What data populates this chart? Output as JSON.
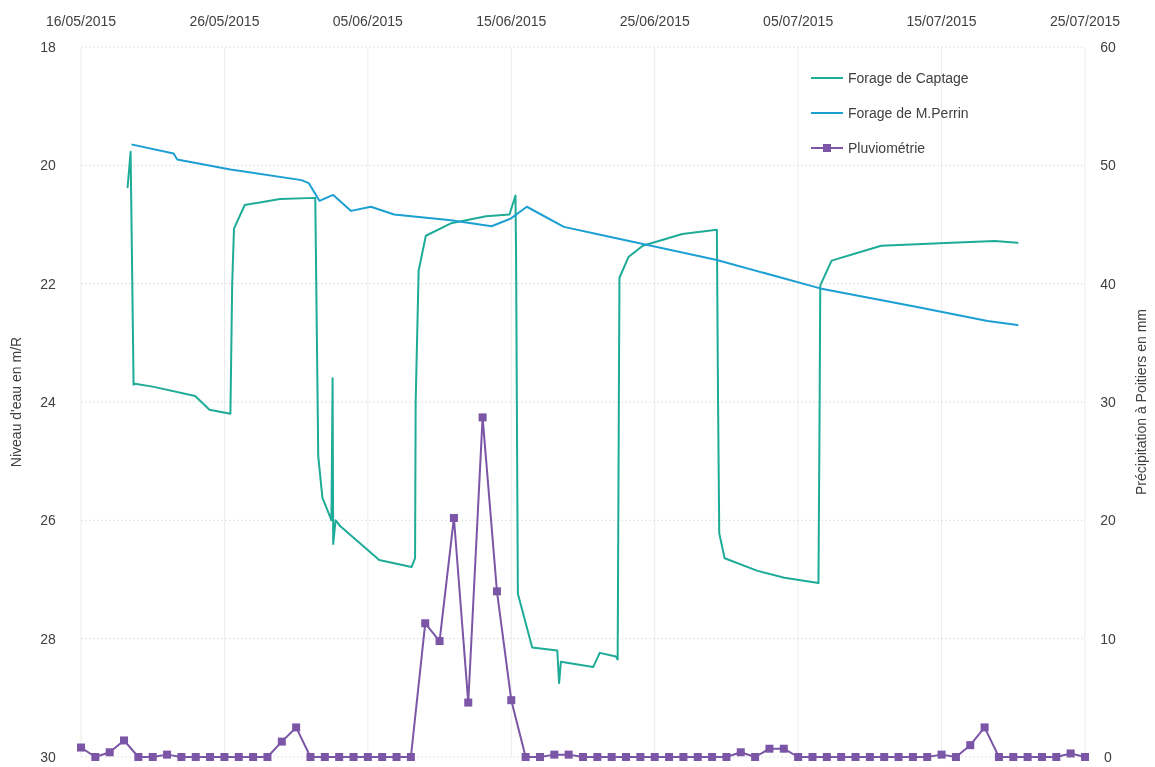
{
  "chart_data": {
    "type": "line",
    "xlabel": null,
    "ylabel": "Niveau d'eau en m/R",
    "y2label": "Précipitation à Poitiers en mm",
    "xlim": [
      "2015-05-16",
      "2015-07-25"
    ],
    "xticks": [
      {
        "value": "2015-05-16",
        "label": "16/05/2015"
      },
      {
        "value": "2015-05-26",
        "label": "26/05/2015"
      },
      {
        "value": "2015-06-05",
        "label": "05/06/2015"
      },
      {
        "value": "2015-06-15",
        "label": "15/06/2015"
      },
      {
        "value": "2015-06-25",
        "label": "25/06/2015"
      },
      {
        "value": "2015-07-05",
        "label": "05/07/2015"
      },
      {
        "value": "2015-07-15",
        "label": "15/07/2015"
      },
      {
        "value": "2015-07-25",
        "label": "25/07/2015"
      }
    ],
    "ylim": [
      30,
      18
    ],
    "yticks": [
      18,
      20,
      22,
      24,
      26,
      28,
      30
    ],
    "y2lim": [
      0,
      60
    ],
    "y2ticks": [
      0,
      10,
      20,
      30,
      40,
      50,
      60
    ],
    "grid": true,
    "legend": "top right",
    "series": [
      {
        "name": "Forage de Captage",
        "color": "#1eab98",
        "marker": "none",
        "x": [
          "2015-05-19T06:00",
          "2015-05-19T11:00",
          "2015-05-19T16:00",
          "2015-05-19T18:00",
          "2015-05-21T00:00",
          "2015-05-23T23:00",
          "2015-05-24T23:00",
          "2015-05-26T10:00",
          "2015-05-26T13:00",
          "2015-05-26T16:00",
          "2015-05-27T10:00",
          "2015-05-29T21:00",
          "2015-06-01T08:00",
          "2015-06-01T13:00",
          "2015-06-01T20:00",
          "2015-06-02T08:00",
          "2015-06-02T11:00",
          "2015-06-02T13:00",
          "2015-06-02T14:00",
          "2015-06-02T18:00",
          "2015-06-03T02:00",
          "2015-06-05T19:00",
          "2015-06-08T01:00",
          "2015-06-08T07:00",
          "2015-06-08T08:00",
          "2015-06-08T13:00",
          "2015-06-09T01:00",
          "2015-06-10T19:00",
          "2015-06-13T06:00",
          "2015-06-14T21:00",
          "2015-06-15T07:00",
          "2015-06-15T08:00",
          "2015-06-15T11:00",
          "2015-06-16T11:00",
          "2015-06-18T05:00",
          "2015-06-18T08:00",
          "2015-06-18T11:00",
          "2015-06-20T17:00",
          "2015-06-21T04:00",
          "2015-06-22T07:00",
          "2015-06-22T10:00",
          "2015-06-22T12:00",
          "2015-06-22T13:00",
          "2015-06-23T04:00",
          "2015-06-24T04:00",
          "2015-06-26T22:00",
          "2015-06-29T08:00",
          "2015-06-29T10:00",
          "2015-06-29T12:00",
          "2015-06-29T21:00",
          "2015-07-02T03:00",
          "2015-07-04T01:00",
          "2015-07-06T10:00",
          "2015-07-06T12:00",
          "2015-07-06T13:00",
          "2015-07-07T08:00",
          "2015-07-10T19:00",
          "2015-07-15T17:00",
          "2015-07-18T17:00",
          "2015-07-20T07:00"
        ],
        "values": [
          20.37,
          19.77,
          23.71,
          23.69,
          23.74,
          23.9,
          24.13,
          24.2,
          22.0,
          21.07,
          20.67,
          20.57,
          20.55,
          24.92,
          25.62,
          25.92,
          26.0,
          23.6,
          26.4,
          26.0,
          26.1,
          26.67,
          26.79,
          26.64,
          24.0,
          21.78,
          21.19,
          20.98,
          20.86,
          20.83,
          20.51,
          21.5,
          27.24,
          28.15,
          28.2,
          28.75,
          28.39,
          28.48,
          28.24,
          28.3,
          28.35,
          24.0,
          21.9,
          21.55,
          21.36,
          21.16,
          21.09,
          24.0,
          26.22,
          26.64,
          26.85,
          26.97,
          27.06,
          24.0,
          22.03,
          21.61,
          21.36,
          21.31,
          21.28,
          21.31
        ]
      },
      {
        "name": "Forage de M.Perrin",
        "color": "#1c9fd2",
        "marker": "none",
        "x": [
          "2015-05-19T14:00",
          "2015-05-22T11:00",
          "2015-05-22T17:00",
          "2015-05-26T10:00",
          "2015-05-31T09:00",
          "2015-05-31T21:00",
          "2015-06-01T15:00",
          "2015-06-02T14:00",
          "2015-06-03T20:00",
          "2015-06-05T05:00",
          "2015-06-06T20:00",
          "2015-06-10T19:00",
          "2015-06-13T15:00",
          "2015-06-14T23:00",
          "2015-06-16T02:00",
          "2015-06-18T16:00",
          "2015-06-20T23:00",
          "2015-06-29T08:00",
          "2015-07-06T13:00",
          "2015-07-13T05:00",
          "2015-07-18T05:00",
          "2015-07-20T07:00"
        ],
        "values": [
          19.65,
          19.8,
          19.9,
          20.07,
          20.25,
          20.3,
          20.6,
          20.5,
          20.77,
          20.7,
          20.83,
          20.93,
          21.03,
          20.9,
          20.7,
          21.04,
          21.16,
          21.6,
          22.08,
          22.39,
          22.63,
          22.7
        ]
      },
      {
        "name": "Pluviométrie",
        "color": "#7b55a6",
        "marker": "square",
        "axis": "y2",
        "x": [
          "2015-05-16",
          "2015-05-17",
          "2015-05-18",
          "2015-05-19",
          "2015-05-20",
          "2015-05-21",
          "2015-05-22",
          "2015-05-23",
          "2015-05-24",
          "2015-05-25",
          "2015-05-26",
          "2015-05-27",
          "2015-05-28",
          "2015-05-29",
          "2015-05-30",
          "2015-05-31",
          "2015-06-01",
          "2015-06-02",
          "2015-06-03",
          "2015-06-04",
          "2015-06-05",
          "2015-06-06",
          "2015-06-07",
          "2015-06-08",
          "2015-06-09",
          "2015-06-10",
          "2015-06-11",
          "2015-06-12",
          "2015-06-13",
          "2015-06-14",
          "2015-06-15",
          "2015-06-16",
          "2015-06-17",
          "2015-06-18",
          "2015-06-19",
          "2015-06-20",
          "2015-06-21",
          "2015-06-22",
          "2015-06-23",
          "2015-06-24",
          "2015-06-25",
          "2015-06-26",
          "2015-06-27",
          "2015-06-28",
          "2015-06-29",
          "2015-06-30",
          "2015-07-01",
          "2015-07-02",
          "2015-07-03",
          "2015-07-04",
          "2015-07-05",
          "2015-07-06",
          "2015-07-07",
          "2015-07-08",
          "2015-07-09",
          "2015-07-10",
          "2015-07-11",
          "2015-07-12",
          "2015-07-13",
          "2015-07-14",
          "2015-07-15",
          "2015-07-16",
          "2015-07-17",
          "2015-07-18",
          "2015-07-19",
          "2015-07-20",
          "2015-07-21",
          "2015-07-22",
          "2015-07-23",
          "2015-07-24",
          "2015-07-25"
        ],
        "values": [
          0.8,
          0,
          0.4,
          1.4,
          0,
          0,
          0.2,
          0,
          0,
          0,
          0,
          0,
          0,
          0,
          1.3,
          2.5,
          0,
          0,
          0,
          0,
          0,
          0,
          0,
          0,
          11.3,
          9.8,
          20.2,
          4.6,
          28.7,
          14.0,
          4.8,
          0,
          0,
          0.2,
          0.2,
          0,
          0,
          0,
          0,
          0,
          0,
          0,
          0,
          0,
          0,
          0,
          0.4,
          0,
          0.7,
          0.7,
          0,
          0,
          0,
          0,
          0,
          0,
          0,
          0,
          0,
          0,
          0.2,
          0,
          1.0,
          2.5,
          0,
          0,
          0,
          0,
          0,
          0.3,
          0
        ]
      }
    ]
  }
}
